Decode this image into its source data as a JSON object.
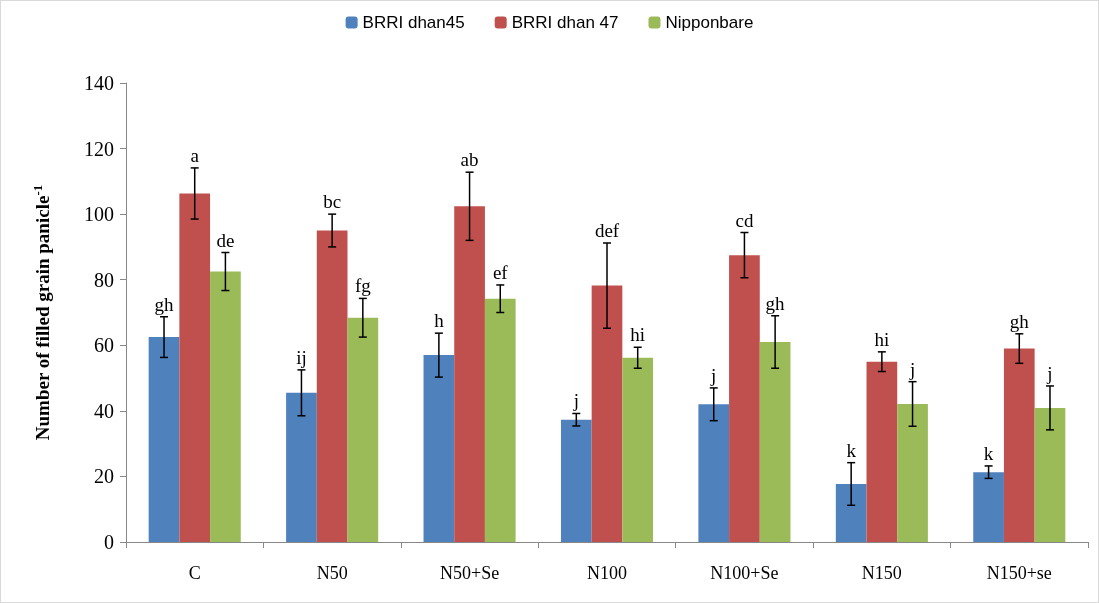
{
  "chart_data": {
    "type": "bar",
    "ylabel": "Number of filled grain panicle$^{-1}$",
    "categories": [
      "C",
      "N50",
      "N50+Se",
      "N100",
      "N100+Se",
      "N150",
      "N150+se"
    ],
    "ylim": [
      0,
      140
    ],
    "yticks": [
      0,
      20,
      40,
      60,
      80,
      100,
      120,
      140
    ],
    "grid": false,
    "legend": "top",
    "series": [
      {
        "name": "BRRI dhan45",
        "color": "#4f81bd",
        "values": [
          62.5,
          45.5,
          57.0,
          37.3,
          42.0,
          17.7,
          21.3
        ],
        "errors": [
          6.2,
          7.0,
          6.7,
          1.9,
          5.0,
          6.5,
          1.9
        ],
        "value_labels": [
          "gh",
          "ij",
          "h",
          "j",
          "j",
          "k",
          "k"
        ]
      },
      {
        "name": "BRRI dhan 47",
        "color": "#c0504d",
        "values": [
          106.3,
          95.0,
          102.4,
          78.2,
          87.5,
          55.0,
          59.0
        ],
        "errors": [
          7.8,
          5.0,
          10.4,
          13.0,
          6.9,
          3.0,
          4.5
        ],
        "value_labels": [
          "a",
          "bc",
          "ab",
          "def",
          "cd",
          "hi",
          "gh"
        ]
      },
      {
        "name": "Nipponbare",
        "color": "#9bbb59",
        "values": [
          82.5,
          68.4,
          74.2,
          56.2,
          61.0,
          42.1,
          40.9
        ],
        "errors": [
          5.8,
          5.9,
          4.2,
          3.2,
          8.0,
          6.8,
          6.7
        ],
        "value_labels": [
          "de",
          "fg",
          "ef",
          "hi",
          "gh",
          "j",
          "j"
        ]
      }
    ]
  }
}
